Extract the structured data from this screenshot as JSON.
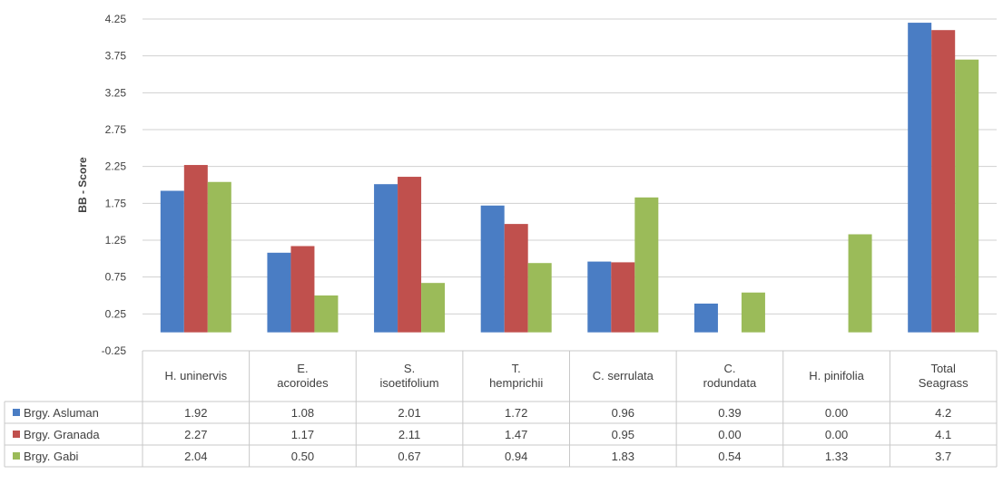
{
  "chart_data": {
    "type": "bar",
    "ylabel": "BB - Score",
    "ylim": [
      -0.25,
      4.25
    ],
    "yticks": [
      "4.25",
      "3.75",
      "3.25",
      "2.75",
      "2.25",
      "1.75",
      "1.25",
      "0.75",
      "0.25",
      "-0.25"
    ],
    "ytick_values": [
      4.25,
      3.75,
      3.25,
      2.75,
      2.25,
      1.75,
      1.25,
      0.75,
      0.25,
      -0.25
    ],
    "grid": true,
    "legend": "data-table-rows",
    "categories": [
      [
        "H. uninervis"
      ],
      [
        "E.",
        "acoroides"
      ],
      [
        "S.",
        "isoetifolium"
      ],
      [
        "T.",
        "hemprichii"
      ],
      [
        "C. serrulata"
      ],
      [
        "C.",
        "rodundata"
      ],
      [
        "H. pinifolia"
      ],
      [
        "Total",
        "Seagrass"
      ]
    ],
    "series": [
      {
        "name": "Brgy. Asluman",
        "color": "#4a7dc4",
        "values": [
          1.92,
          1.08,
          2.01,
          1.72,
          0.96,
          0.39,
          0.0,
          4.2
        ],
        "labels": [
          "1.92",
          "1.08",
          "2.01",
          "1.72",
          "0.96",
          "0.39",
          "0.00",
          "4.2"
        ]
      },
      {
        "name": "Brgy. Granada",
        "color": "#c0504d",
        "values": [
          2.27,
          1.17,
          2.11,
          1.47,
          0.95,
          0.0,
          0.0,
          4.1
        ],
        "labels": [
          "2.27",
          "1.17",
          "2.11",
          "1.47",
          "0.95",
          "0.00",
          "0.00",
          "4.1"
        ]
      },
      {
        "name": "Brgy. Gabi",
        "color": "#9bbb59",
        "values": [
          2.04,
          0.5,
          0.67,
          0.94,
          1.83,
          0.54,
          1.33,
          3.7
        ],
        "labels": [
          "2.04",
          "0.50",
          "0.67",
          "0.94",
          "1.83",
          "0.54",
          "1.33",
          "3.7"
        ]
      }
    ]
  }
}
